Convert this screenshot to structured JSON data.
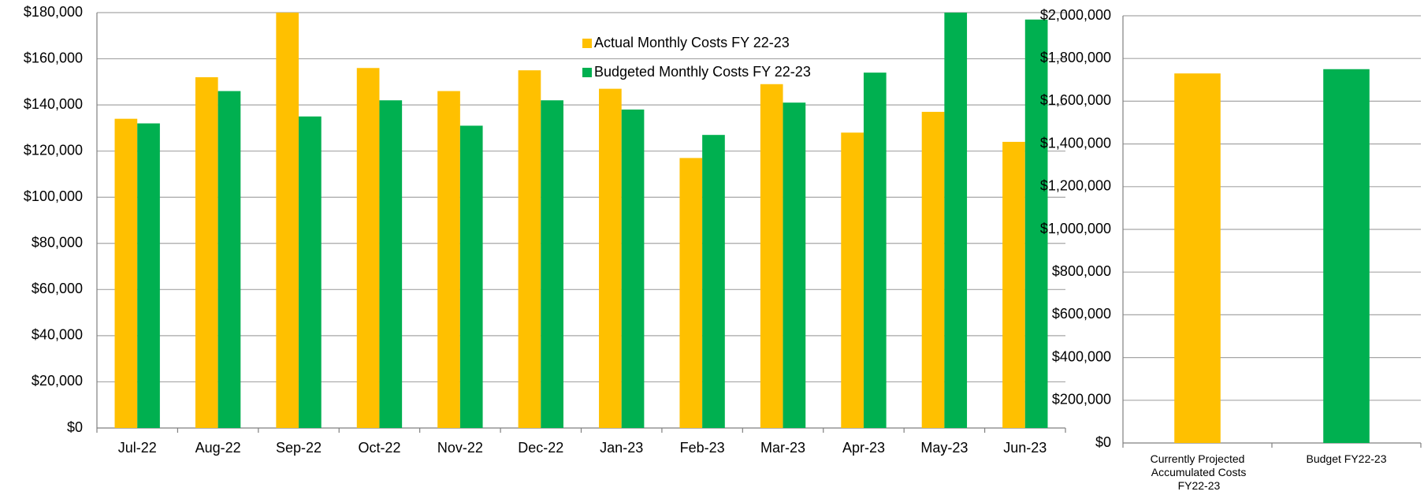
{
  "chart_data": [
    {
      "type": "bar",
      "categories": [
        "Jul-22",
        "Aug-22",
        "Sep-22",
        "Oct-22",
        "Nov-22",
        "Dec-22",
        "Jan-23",
        "Feb-23",
        "Mar-23",
        "Apr-23",
        "May-23",
        "Jun-23"
      ],
      "series": [
        {
          "name": "Actual Monthly Costs FY 22-23",
          "color": "#ffc000",
          "values": [
            134000,
            152000,
            180000,
            156000,
            146000,
            155000,
            147000,
            117000,
            149000,
            128000,
            137000,
            124000
          ]
        },
        {
          "name": "Budgeted Monthly Costs FY 22-23",
          "color": "#00b050",
          "values": [
            132000,
            146000,
            135000,
            142000,
            131000,
            142000,
            138000,
            127000,
            141000,
            154000,
            180000,
            177000
          ]
        }
      ],
      "ylim": [
        0,
        180000
      ],
      "yticks": [
        {
          "value": 0,
          "label": "$0"
        },
        {
          "value": 20000,
          "label": "$20,000"
        },
        {
          "value": 40000,
          "label": "$40,000"
        },
        {
          "value": 60000,
          "label": "$60,000"
        },
        {
          "value": 80000,
          "label": "$80,000"
        },
        {
          "value": 100000,
          "label": "$100,000"
        },
        {
          "value": 120000,
          "label": "$120,000"
        },
        {
          "value": 140000,
          "label": "$140,000"
        },
        {
          "value": 160000,
          "label": "$160,000"
        },
        {
          "value": 180000,
          "label": "$180,000"
        }
      ],
      "grid": true,
      "legend": "top"
    },
    {
      "type": "bar",
      "categories": [
        "Currently Projected Accumulated Costs FY22-23",
        "Budget FY22-23"
      ],
      "values": [
        1730000,
        1750000
      ],
      "colors": [
        "#ffc000",
        "#00b050"
      ],
      "ylim": [
        0,
        2000000
      ],
      "yticks": [
        {
          "value": 0,
          "label": "$0"
        },
        {
          "value": 200000,
          "label": "$200,000"
        },
        {
          "value": 400000,
          "label": "$400,000"
        },
        {
          "value": 600000,
          "label": "$600,000"
        },
        {
          "value": 800000,
          "label": "$800,000"
        },
        {
          "value": 1000000,
          "label": "$1,000,000"
        },
        {
          "value": 1200000,
          "label": "$1,200,000"
        },
        {
          "value": 1400000,
          "label": "$1,400,000"
        },
        {
          "value": 1600000,
          "label": "$1,600,000"
        },
        {
          "value": 1800000,
          "label": "$1,800,000"
        },
        {
          "value": 2000000,
          "label": "$2,000,000"
        }
      ],
      "grid": true
    }
  ]
}
